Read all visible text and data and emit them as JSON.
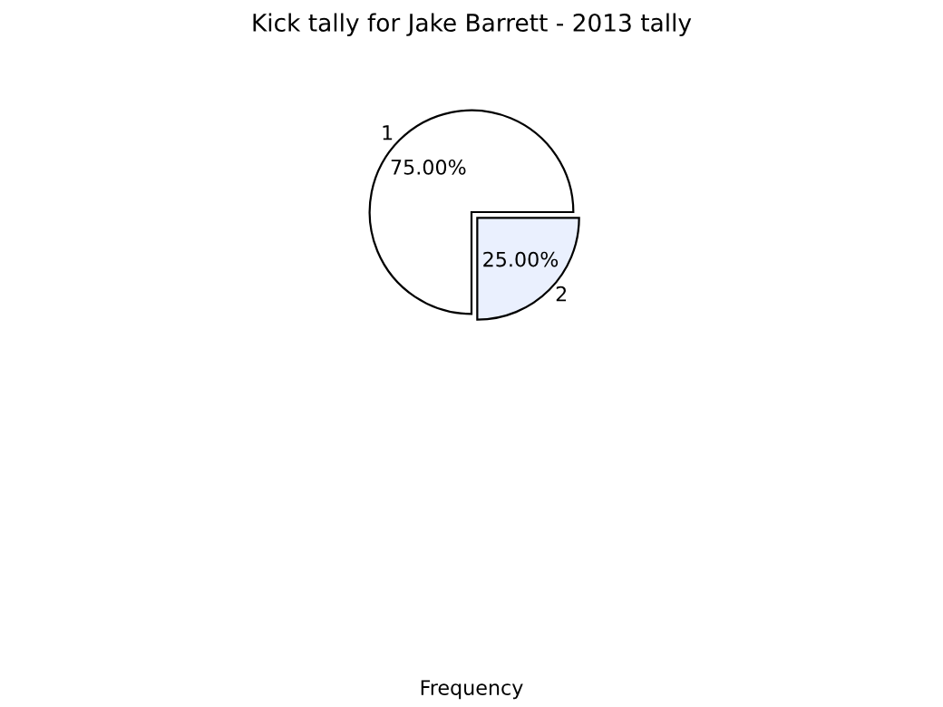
{
  "chart_data": {
    "type": "pie",
    "title": "Kick tally for Jake Barrett - 2013 tally",
    "categories": [
      "1",
      "2"
    ],
    "values": [
      75,
      25
    ],
    "value_labels": [
      "75.00%",
      "25.00%"
    ],
    "colors": [
      "#ffffff",
      "#eaf0fe"
    ],
    "annotations": [
      "Frequency"
    ]
  }
}
